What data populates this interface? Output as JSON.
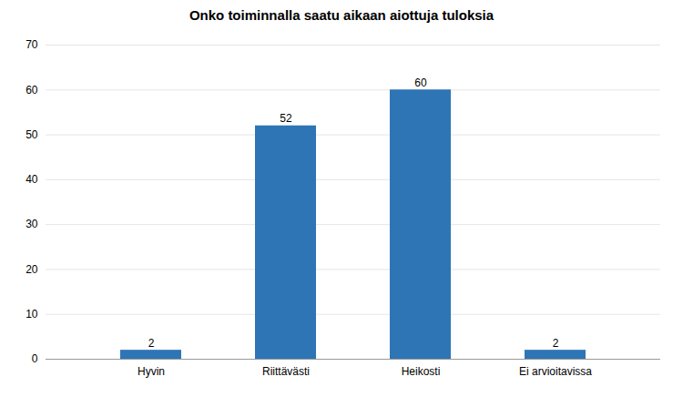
{
  "chart_data": {
    "type": "bar",
    "title": "Onko toiminnalla saatu aikaan aiottuja tuloksia",
    "categories": [
      "Hyvin",
      "Riittävästi",
      "Heikosti",
      "Ei arvioitavissa"
    ],
    "values": [
      2,
      52,
      60,
      2
    ],
    "color": "#2E75B6",
    "ylim": [
      0,
      70
    ],
    "yticks": [
      0,
      10,
      20,
      30,
      40,
      50,
      60,
      70
    ],
    "grid": true,
    "data_labels": true
  }
}
